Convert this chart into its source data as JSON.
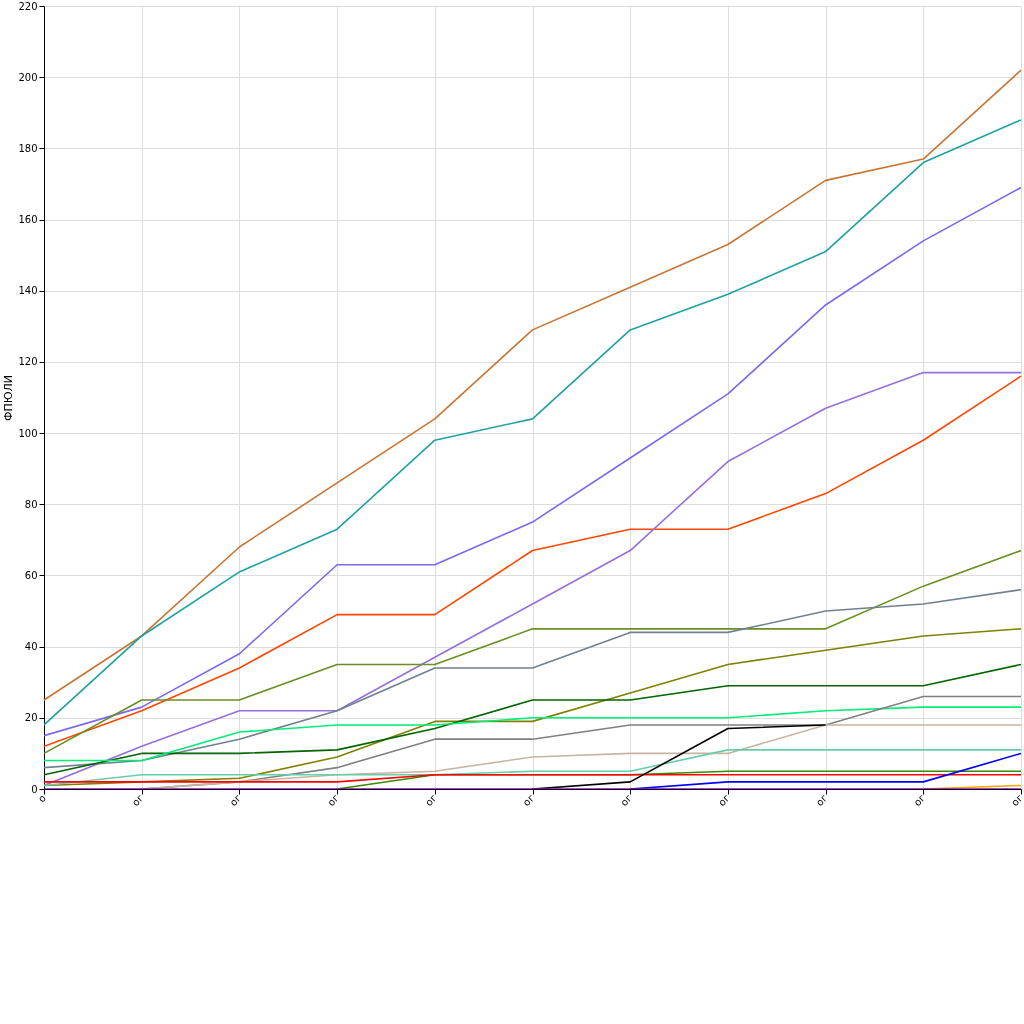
{
  "chart_data": {
    "type": "line",
    "ylabel": "ФПЮЛИ",
    "categories": [
      "o",
      "oг",
      "oг",
      "oг",
      "oг",
      "oг",
      "oг",
      "oг",
      "oг",
      "oг",
      "oг"
    ],
    "ylim": [
      0,
      220
    ],
    "yticks": [
      0,
      20,
      40,
      60,
      80,
      100,
      120,
      140,
      160,
      180,
      200,
      220
    ],
    "grid": true,
    "marker": "none",
    "line_style": "solid",
    "series": [
      {
        "color": "#c87533",
        "values": [
          25,
          43,
          68,
          86,
          104,
          129,
          141,
          153,
          171,
          177,
          202
        ]
      },
      {
        "color": "#20a0a0",
        "values": [
          18,
          43,
          61,
          73,
          98,
          104,
          129,
          139,
          151,
          176,
          188
        ]
      },
      {
        "color": "#7b68ee",
        "values": [
          15,
          23,
          38,
          63,
          63,
          75,
          93,
          111,
          136,
          154,
          169
        ]
      },
      {
        "color": "#ff4500",
        "values": [
          12,
          22,
          34,
          49,
          49,
          67,
          73,
          73,
          83,
          98,
          116
        ]
      },
      {
        "color": "#9370db",
        "values": [
          1,
          12,
          22,
          22,
          37,
          52,
          67,
          92,
          107,
          117,
          117
        ]
      },
      {
        "color": "#6b8e23",
        "values": [
          10,
          25,
          25,
          35,
          35,
          45,
          45,
          45,
          45,
          57,
          67
        ]
      },
      {
        "color": "#708090",
        "values": [
          6,
          8,
          14,
          22,
          34,
          34,
          44,
          44,
          50,
          52,
          56
        ]
      },
      {
        "color": "#808000",
        "values": [
          1,
          2,
          3,
          9,
          19,
          19,
          27,
          35,
          39,
          43,
          45
        ]
      },
      {
        "color": "#006400",
        "values": [
          4,
          10,
          10,
          11,
          17,
          25,
          25,
          29,
          29,
          29,
          35
        ]
      },
      {
        "color": "#00ee76",
        "values": [
          8,
          8,
          16,
          18,
          18,
          20,
          20,
          20,
          22,
          23,
          23
        ]
      },
      {
        "color": "#808080",
        "values": [
          null,
          0,
          2,
          6,
          14,
          14,
          18,
          18,
          18,
          26,
          26
        ]
      },
      {
        "color": "#c8b4a0",
        "values": [
          null,
          0,
          2,
          4,
          5,
          9,
          10,
          10,
          18,
          18,
          18
        ]
      },
      {
        "color": "#66cdaa",
        "values": [
          1,
          4,
          4,
          4,
          4,
          5,
          5,
          11,
          11,
          11,
          11
        ]
      },
      {
        "color": "#3a8a00",
        "values": [
          null,
          null,
          null,
          0,
          4,
          4,
          4,
          5,
          5,
          5,
          5
        ]
      },
      {
        "color": "#ff0000",
        "values": [
          2,
          2,
          2,
          2,
          4,
          4,
          4,
          4,
          4,
          4,
          4
        ]
      },
      {
        "color": "#000000",
        "values": [
          null,
          null,
          null,
          null,
          null,
          0,
          2,
          17,
          18,
          null,
          null
        ]
      },
      {
        "color": "#0000ff",
        "values": [
          null,
          null,
          null,
          null,
          null,
          null,
          0,
          2,
          2,
          2,
          10
        ]
      },
      {
        "color": "#ffa500",
        "values": [
          null,
          null,
          null,
          null,
          null,
          null,
          null,
          null,
          null,
          0,
          1
        ]
      },
      {
        "color": "#9400d3",
        "values": [
          0,
          0,
          0,
          0,
          0,
          0,
          0,
          0,
          0,
          0,
          0
        ]
      }
    ]
  }
}
